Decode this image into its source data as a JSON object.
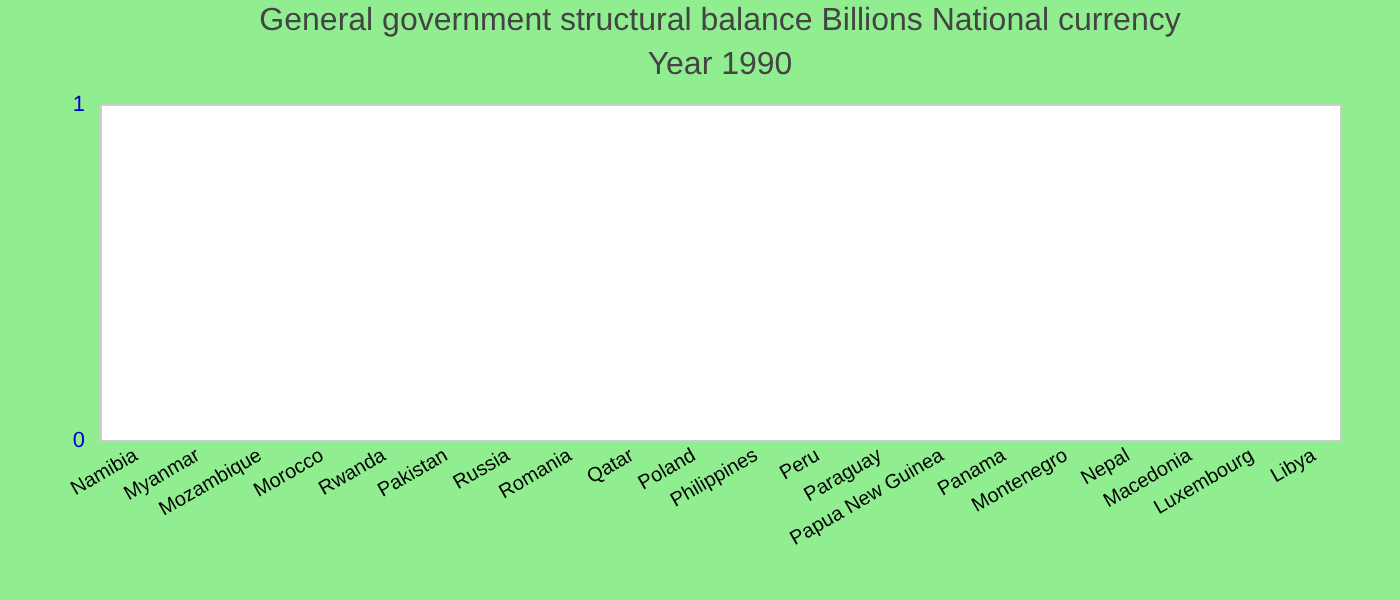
{
  "chart_data": {
    "type": "bar",
    "title": "General government structural balance Billions National currency",
    "subtitle": "Year 1990",
    "categories": [
      "Namibia",
      "Myanmar",
      "Mozambique",
      "Morocco",
      "Rwanda",
      "Pakistan",
      "Russia",
      "Romania",
      "Qatar",
      "Poland",
      "Philippines",
      "Peru",
      "Paraguay",
      "Papua New Guinea",
      "Panama",
      "Montenegro",
      "Nepal",
      "Macedonia",
      "Luxembourg",
      "Libya"
    ],
    "values": [
      null,
      null,
      null,
      null,
      null,
      null,
      null,
      null,
      null,
      null,
      null,
      null,
      null,
      null,
      null,
      null,
      null,
      null,
      null,
      null
    ],
    "ylim": [
      0,
      1
    ],
    "yticks": [
      0,
      1
    ],
    "grid": false
  }
}
